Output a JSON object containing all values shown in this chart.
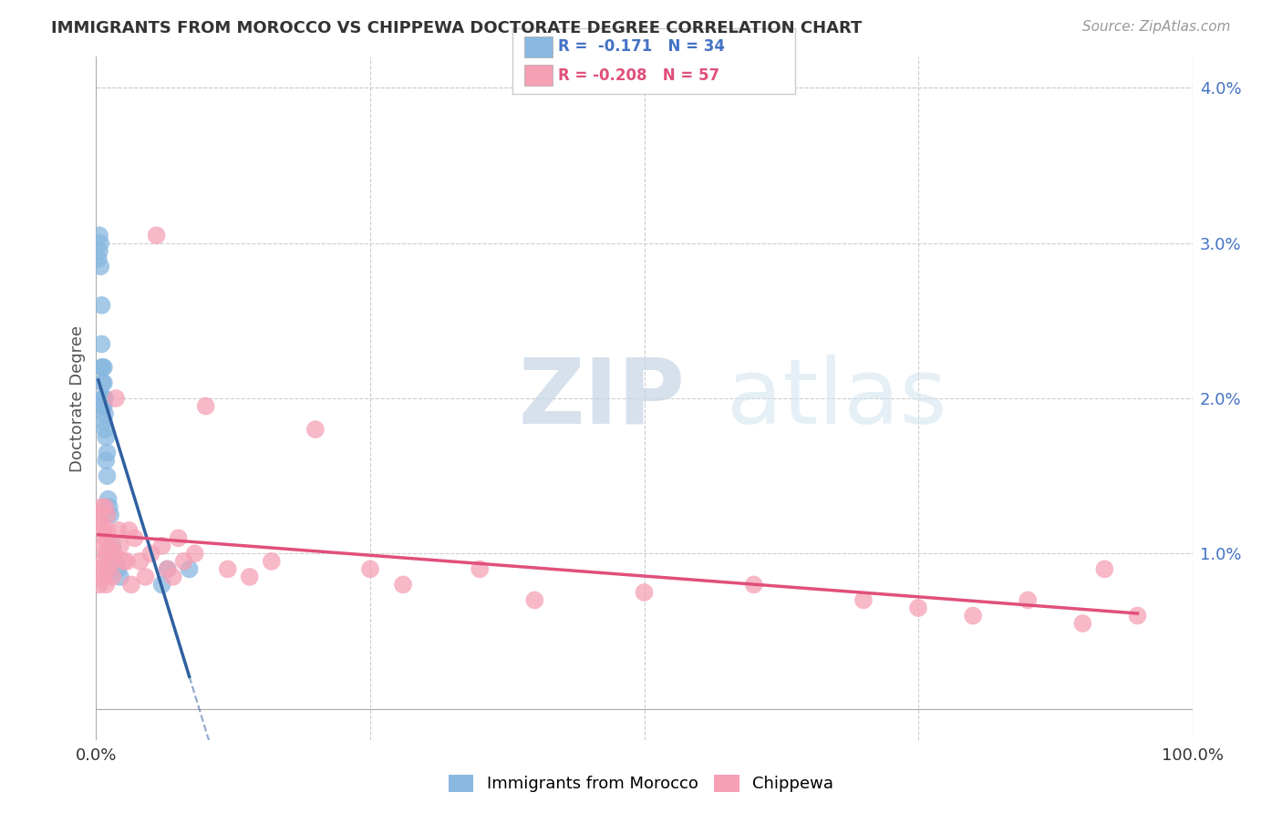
{
  "title": "IMMIGRANTS FROM MOROCCO VS CHIPPEWA DOCTORATE DEGREE CORRELATION CHART",
  "source": "Source: ZipAtlas.com",
  "ylabel": "Doctorate Degree",
  "legend_label1": "Immigrants from Morocco",
  "legend_label2": "Chippewa",
  "r1": "-0.171",
  "n1": "34",
  "r2": "-0.208",
  "n2": "57",
  "color_blue": "#89b8e0",
  "color_pink": "#f5a0b5",
  "line_blue": "#3060a0",
  "line_pink": "#e0507a",
  "blue_x": [
    0.002,
    0.003,
    0.003,
    0.004,
    0.004,
    0.005,
    0.005,
    0.005,
    0.006,
    0.006,
    0.006,
    0.006,
    0.007,
    0.007,
    0.007,
    0.007,
    0.007,
    0.008,
    0.008,
    0.008,
    0.009,
    0.009,
    0.01,
    0.01,
    0.011,
    0.012,
    0.013,
    0.015,
    0.018,
    0.02,
    0.022,
    0.06,
    0.065,
    0.085
  ],
  "blue_y": [
    0.029,
    0.0295,
    0.0305,
    0.0285,
    0.03,
    0.022,
    0.0235,
    0.026,
    0.0195,
    0.02,
    0.021,
    0.022,
    0.0185,
    0.0195,
    0.02,
    0.021,
    0.022,
    0.018,
    0.019,
    0.02,
    0.016,
    0.0175,
    0.015,
    0.0165,
    0.0135,
    0.013,
    0.0125,
    0.0105,
    0.0095,
    0.009,
    0.0085,
    0.008,
    0.009,
    0.009
  ],
  "pink_x": [
    0.002,
    0.003,
    0.004,
    0.004,
    0.005,
    0.005,
    0.006,
    0.007,
    0.007,
    0.008,
    0.008,
    0.009,
    0.009,
    0.01,
    0.01,
    0.011,
    0.012,
    0.013,
    0.014,
    0.015,
    0.016,
    0.018,
    0.02,
    0.022,
    0.025,
    0.028,
    0.03,
    0.032,
    0.035,
    0.04,
    0.045,
    0.05,
    0.055,
    0.06,
    0.065,
    0.07,
    0.075,
    0.08,
    0.09,
    0.1,
    0.12,
    0.14,
    0.16,
    0.2,
    0.25,
    0.28,
    0.35,
    0.4,
    0.5,
    0.6,
    0.7,
    0.75,
    0.8,
    0.85,
    0.9,
    0.92,
    0.95
  ],
  "pink_y": [
    0.0125,
    0.008,
    0.012,
    0.009,
    0.013,
    0.0095,
    0.0115,
    0.0105,
    0.0085,
    0.011,
    0.013,
    0.008,
    0.01,
    0.0115,
    0.0125,
    0.009,
    0.01,
    0.0105,
    0.0095,
    0.0085,
    0.01,
    0.02,
    0.0115,
    0.0105,
    0.0095,
    0.0095,
    0.0115,
    0.008,
    0.011,
    0.0095,
    0.0085,
    0.01,
    0.0305,
    0.0105,
    0.009,
    0.0085,
    0.011,
    0.0095,
    0.01,
    0.0195,
    0.009,
    0.0085,
    0.0095,
    0.018,
    0.009,
    0.008,
    0.009,
    0.007,
    0.0075,
    0.008,
    0.007,
    0.0065,
    0.006,
    0.007,
    0.0055,
    0.009,
    0.006
  ]
}
